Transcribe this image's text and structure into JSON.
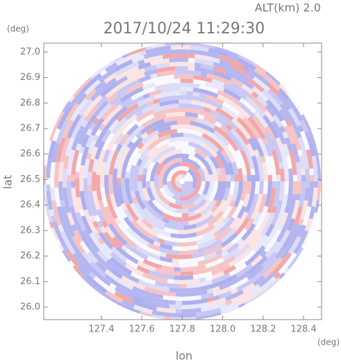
{
  "chart_data": {
    "type": "radar-ppi",
    "title": "2017/10/24 11:29:30",
    "subtitle": "ALT(km) 2.0",
    "x_label": "lon",
    "y_label": "lat",
    "x_unit": "(deg)",
    "y_unit": "(deg)",
    "xlim": [
      127.115,
      128.489
    ],
    "ylim": [
      25.951,
      27.035
    ],
    "xticks": [
      127.4,
      127.6,
      127.8,
      {
        "value": 128.0,
        "label": "128.0"
      },
      128.2,
      128.4
    ],
    "yticks": [
      {
        "value": 26.0,
        "label": "26.0"
      },
      26.1,
      26.2,
      26.3,
      26.4,
      26.5,
      26.6,
      26.7,
      26.8,
      26.9,
      {
        "value": 27.0,
        "label": "27.0"
      }
    ]
  }
}
